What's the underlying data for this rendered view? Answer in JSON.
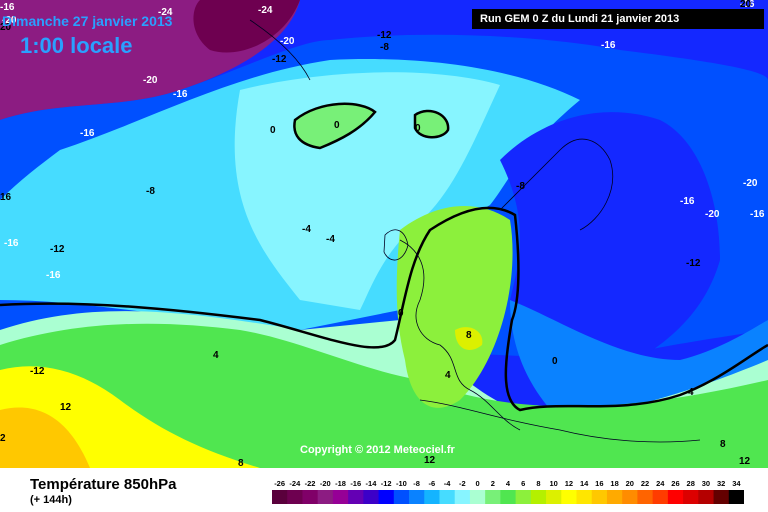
{
  "header": {
    "date": "Dimanche 27 janvier 2013",
    "time": "1:00 locale",
    "run": "Run GEM 0 Z du Lundi 21 janvier 2013"
  },
  "watermark": "Copyright © 2012 Meteociel.fr",
  "footer": {
    "parameter": "Température 850hPa",
    "lead_time": "(+ 144h)"
  },
  "map_labels": [
    {
      "text": "-16",
      "pos": "top-left"
    },
    {
      "text": "-24",
      "pos": "top"
    },
    {
      "text": "-24",
      "pos": "top"
    },
    {
      "text": "-20",
      "pos": "top-left"
    },
    {
      "text": "-20",
      "pos": "north"
    },
    {
      "text": "-12",
      "pos": "north"
    },
    {
      "text": "-12",
      "pos": "north"
    },
    {
      "text": "-8",
      "pos": "north"
    },
    {
      "text": "-16",
      "pos": "north-east"
    },
    {
      "text": "-16",
      "pos": "top-right"
    },
    {
      "text": "-20",
      "pos": "north-west"
    },
    {
      "text": "-16",
      "pos": "north-west"
    },
    {
      "text": "-16",
      "pos": "west"
    },
    {
      "text": "-8",
      "pos": "west"
    },
    {
      "text": "-16",
      "pos": "west"
    },
    {
      "text": "-12",
      "pos": "west"
    },
    {
      "text": "-16",
      "pos": "west"
    },
    {
      "text": "0",
      "pos": "greenland"
    },
    {
      "text": "0",
      "pos": "greenland"
    },
    {
      "text": "0",
      "pos": "iceland"
    },
    {
      "text": "-4",
      "pos": "atlantic"
    },
    {
      "text": "-4",
      "pos": "atlantic"
    },
    {
      "text": "-8",
      "pos": "scandinavia"
    },
    {
      "text": "-16",
      "pos": "russia"
    },
    {
      "text": "-20",
      "pos": "russia"
    },
    {
      "text": "-20",
      "pos": "russia"
    },
    {
      "text": "-16",
      "pos": "russia"
    },
    {
      "text": "-12",
      "pos": "russia"
    },
    {
      "text": "0",
      "pos": "bay-of-biscay"
    },
    {
      "text": "8",
      "pos": "france"
    },
    {
      "text": "4",
      "pos": "italy"
    },
    {
      "text": "0",
      "pos": "balkans"
    },
    {
      "text": "4",
      "pos": "black-sea"
    },
    {
      "text": "4",
      "pos": "atlantic-south"
    },
    {
      "text": "-12",
      "pos": "south-west"
    },
    {
      "text": "12",
      "pos": "south-west"
    },
    {
      "text": "8",
      "pos": "south"
    },
    {
      "text": "8",
      "pos": "south-east"
    },
    {
      "text": "12",
      "pos": "south-east"
    },
    {
      "text": "12",
      "pos": "south"
    },
    {
      "text": "2",
      "pos": "far-south-west"
    },
    {
      "text": "16",
      "pos": "far-west"
    },
    {
      "text": "20",
      "pos": "far-west"
    },
    {
      "text": "20",
      "pos": "top-right"
    }
  ],
  "scale": {
    "labels": [
      "-26",
      "-24",
      "-22",
      "-20",
      "-18",
      "-16",
      "-14",
      "-12",
      "-10",
      "-8",
      "-6",
      "-4",
      "-2",
      "0",
      "2",
      "4",
      "6",
      "8",
      "10",
      "12",
      "14",
      "16",
      "18",
      "20",
      "22",
      "24",
      "26",
      "28",
      "30",
      "32",
      "34"
    ],
    "colors": [
      "#5a003c",
      "#6e0050",
      "#800068",
      "#8c1c82",
      "#960096",
      "#6400b4",
      "#3c00c8",
      "#0000ff",
      "#0050ff",
      "#0a82ff",
      "#14b4ff",
      "#46dcff",
      "#87f5ff",
      "#aaffd2",
      "#78f078",
      "#50e650",
      "#8cf03c",
      "#b4f000",
      "#dcf000",
      "#ffff00",
      "#ffe600",
      "#ffc800",
      "#ffaa00",
      "#ff8c00",
      "#ff6400",
      "#ff3c00",
      "#ff0000",
      "#dc0000",
      "#b40000",
      "#640000",
      "#000000"
    ]
  }
}
